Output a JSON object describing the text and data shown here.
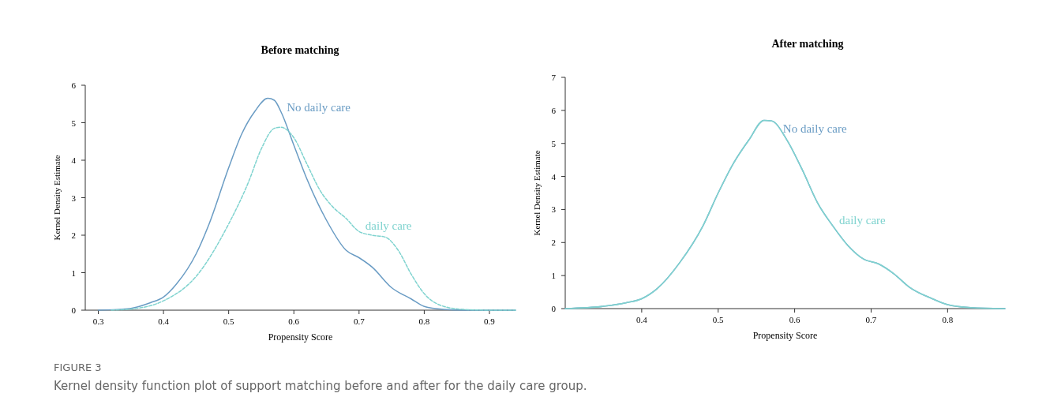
{
  "chart_data": [
    {
      "type": "line",
      "title": "Before matching",
      "xlabel": "Propensity Score",
      "ylabel": "Kernel Density Estimate",
      "xlim": [
        0.28,
        0.94
      ],
      "xticks": [
        0.3,
        0.4,
        0.5,
        0.6,
        0.7,
        0.8,
        0.9
      ],
      "ylim": [
        0,
        6
      ],
      "yticks": [
        0,
        1,
        2,
        3,
        4,
        5,
        6
      ],
      "grid": false,
      "marker": "none",
      "series": [
        {
          "name": "No daily care",
          "color": "#6a9cc4",
          "line_style": "solid",
          "x": [
            0.3,
            0.35,
            0.38,
            0.4,
            0.42,
            0.45,
            0.47,
            0.5,
            0.52,
            0.54,
            0.56,
            0.57,
            0.58,
            0.6,
            0.62,
            0.65,
            0.68,
            0.7,
            0.72,
            0.75,
            0.78,
            0.8,
            0.83,
            0.86,
            0.94
          ],
          "values": [
            0,
            0.05,
            0.2,
            0.35,
            0.7,
            1.5,
            2.3,
            3.8,
            4.7,
            5.3,
            5.65,
            5.6,
            5.3,
            4.4,
            3.5,
            2.4,
            1.6,
            1.4,
            1.15,
            0.6,
            0.3,
            0.1,
            0.02,
            0,
            0
          ]
        },
        {
          "name": "daily care",
          "color": "#7fd3cf",
          "line_style": "dashed",
          "x": [
            0.32,
            0.36,
            0.4,
            0.45,
            0.5,
            0.53,
            0.55,
            0.57,
            0.58,
            0.6,
            0.62,
            0.64,
            0.66,
            0.68,
            0.7,
            0.72,
            0.74,
            0.76,
            0.78,
            0.8,
            0.83,
            0.86,
            0.9,
            0.94
          ],
          "values": [
            0,
            0.05,
            0.25,
            0.9,
            2.3,
            3.4,
            4.3,
            4.85,
            4.88,
            4.6,
            3.9,
            3.2,
            2.75,
            2.45,
            2.1,
            2.0,
            1.95,
            1.6,
            0.96,
            0.44,
            0.1,
            0.02,
            0,
            0
          ]
        }
      ],
      "annotations": [
        "FIGURE 3",
        "Kernel density function plot of support matching before and after for the daily care group."
      ]
    },
    {
      "type": "line",
      "title": "After matching",
      "xlabel": "Propensity Score",
      "ylabel": "Kernel Density Estimate",
      "xlim": [
        0.3,
        0.875
      ],
      "xticks": [
        0.4,
        0.5,
        0.6,
        0.7,
        0.8
      ],
      "ylim": [
        0,
        7
      ],
      "yticks": [
        0,
        1,
        2,
        3,
        4,
        5,
        6,
        7
      ],
      "grid": false,
      "marker": "none",
      "series": [
        {
          "name": "No daily care",
          "color": "#6a9cc4",
          "line_style": "solid",
          "x": [
            0.3,
            0.35,
            0.38,
            0.4,
            0.42,
            0.45,
            0.48,
            0.5,
            0.52,
            0.54,
            0.56,
            0.57,
            0.59,
            0.61,
            0.63,
            0.65,
            0.67,
            0.69,
            0.71,
            0.73,
            0.75,
            0.78,
            0.8,
            0.83,
            0.875
          ],
          "values": [
            0,
            0.07,
            0.18,
            0.3,
            0.6,
            1.4,
            2.5,
            3.5,
            4.4,
            5.1,
            5.7,
            5.68,
            5.1,
            4.2,
            3.2,
            2.5,
            1.9,
            1.5,
            1.35,
            1.05,
            0.65,
            0.3,
            0.12,
            0.03,
            0
          ]
        },
        {
          "name": "daily care",
          "color": "#7fd3cf",
          "line_style": "solid",
          "x": [
            0.3,
            0.35,
            0.38,
            0.4,
            0.42,
            0.45,
            0.48,
            0.5,
            0.52,
            0.54,
            0.56,
            0.57,
            0.59,
            0.61,
            0.63,
            0.65,
            0.67,
            0.69,
            0.71,
            0.73,
            0.75,
            0.78,
            0.8,
            0.83,
            0.875
          ],
          "values": [
            0,
            0.07,
            0.18,
            0.3,
            0.6,
            1.4,
            2.5,
            3.5,
            4.4,
            5.1,
            5.7,
            5.68,
            5.1,
            4.2,
            3.2,
            2.5,
            1.9,
            1.5,
            1.35,
            1.05,
            0.65,
            0.3,
            0.12,
            0.03,
            0
          ]
        }
      ]
    }
  ]
}
